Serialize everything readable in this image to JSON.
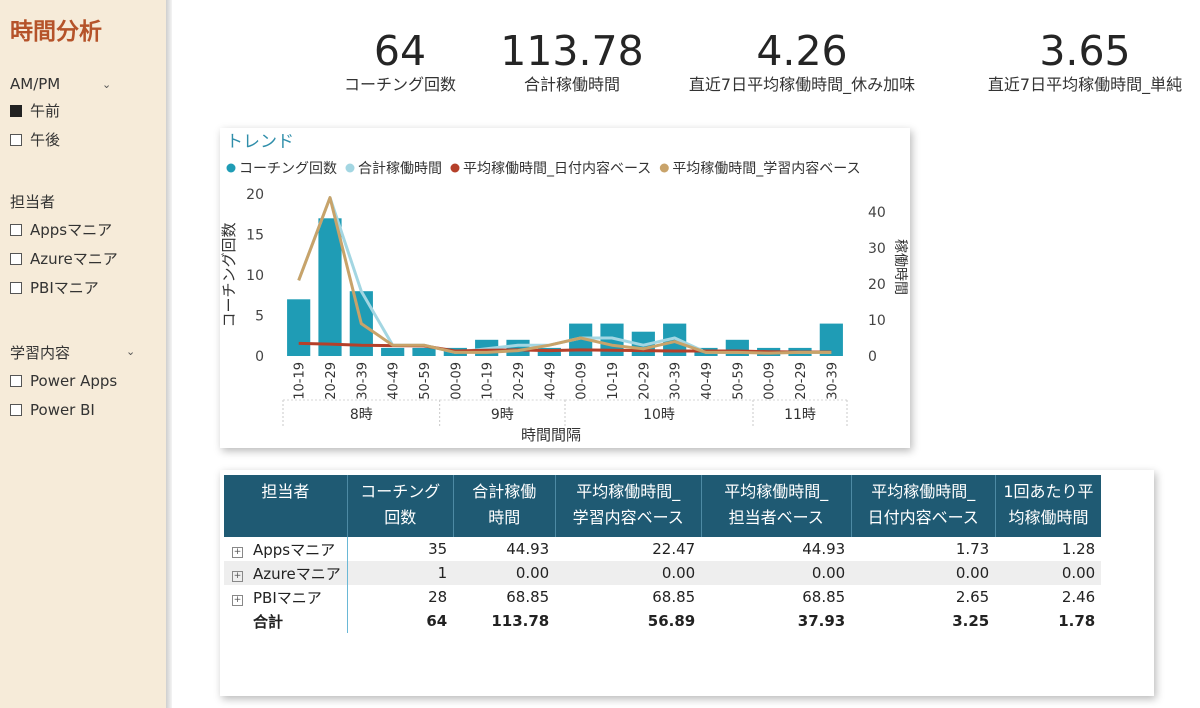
{
  "sidebar": {
    "title": "時間分析",
    "ampm": {
      "title": "AM/PM",
      "items": [
        {
          "label": "午前",
          "checked": true
        },
        {
          "label": "午後",
          "checked": false
        }
      ]
    },
    "tantou": {
      "title": "担当者",
      "items": [
        {
          "label": "Appsマニア",
          "checked": false
        },
        {
          "label": "Azureマニア",
          "checked": false
        },
        {
          "label": "PBIマニア",
          "checked": false
        }
      ]
    },
    "gakushu": {
      "title": "学習内容",
      "items": [
        {
          "label": "Power Apps",
          "checked": false
        },
        {
          "label": "Power BI",
          "checked": false
        }
      ]
    }
  },
  "cards": [
    {
      "value": "64",
      "label": "コーチング回数"
    },
    {
      "value": "113.78",
      "label": "合計稼働時間"
    },
    {
      "value": "4.26",
      "label": "直近7日平均稼働時間_休み加味"
    },
    {
      "value": "3.65",
      "label": "直近7日平均稼働時間_単純"
    }
  ],
  "chart_data": {
    "type": "bar",
    "title": "トレンド",
    "xlabel": "時間間隔",
    "ylabel": "コーチング回数",
    "y2label": "稼働時間",
    "ylim": [
      0,
      20
    ],
    "y2lim": [
      0,
      45
    ],
    "yticks": [
      0,
      5,
      10,
      15,
      20
    ],
    "y2ticks": [
      0,
      10,
      20,
      30,
      40
    ],
    "legend_position": "top-left",
    "categories": [
      "10-19",
      "20-29",
      "30-39",
      "40-49",
      "50-59",
      "00-09",
      "10-19",
      "20-29",
      "40-49",
      "00-09",
      "10-19",
      "20-29",
      "30-39",
      "40-49",
      "50-59",
      "00-09",
      "20-29",
      "30-39"
    ],
    "groups": [
      {
        "label": "8時",
        "count": 5
      },
      {
        "label": "9時",
        "count": 4
      },
      {
        "label": "10時",
        "count": 6
      },
      {
        "label": "11時",
        "count": 3
      }
    ],
    "series": [
      {
        "name": "コーチング回数",
        "type": "bar",
        "axis": "left",
        "color": "#1f9cb5",
        "values": [
          7,
          17,
          8,
          1,
          1,
          1,
          2,
          2,
          1,
          4,
          4,
          3,
          4,
          1,
          2,
          1,
          1,
          4
        ]
      },
      {
        "name": "合計稼働時間",
        "type": "line",
        "axis": "right",
        "color": "#a3d6e2",
        "values": [
          21,
          44,
          18,
          3,
          3,
          1,
          2,
          3,
          3,
          5,
          5,
          3,
          5,
          1,
          1,
          1,
          1,
          1
        ]
      },
      {
        "name": "平均稼働時間_日付内容ベース",
        "type": "line",
        "axis": "right",
        "color": "#b5402a",
        "values": [
          3.5,
          3.3,
          3.0,
          2.9,
          2.8,
          1.4,
          1.6,
          1.7,
          1.5,
          1.7,
          1.6,
          1.5,
          1.4,
          1.4,
          1.4,
          1.2,
          1.1,
          1.1
        ]
      },
      {
        "name": "平均稼働時間_学習内容ベース",
        "type": "line",
        "axis": "right",
        "color": "#c8a36a",
        "values": [
          21,
          44,
          9,
          3,
          3,
          1,
          1,
          1.5,
          3,
          5,
          3,
          2,
          4,
          1,
          1,
          0.8,
          1,
          1
        ]
      }
    ]
  },
  "table": {
    "headers": [
      "担当者",
      "コーチング\n回数",
      "合計稼働\n時間",
      "平均稼働時間_\n学習内容ベース",
      "平均稼働時間_\n担当者ベース",
      "平均稼働時間_\n日付内容ベース",
      "1回あたり平\n均稼働時間"
    ],
    "rows": [
      {
        "name": "Appsマニア",
        "cells": [
          "35",
          "44.93",
          "22.47",
          "44.93",
          "1.73",
          "1.28"
        ]
      },
      {
        "name": "Azureマニア",
        "cells": [
          "1",
          "0.00",
          "0.00",
          "0.00",
          "0.00",
          "0.00"
        ]
      },
      {
        "name": "PBIマニア",
        "cells": [
          "28",
          "68.85",
          "68.85",
          "68.85",
          "2.65",
          "2.46"
        ]
      }
    ],
    "total": {
      "name": "合計",
      "cells": [
        "64",
        "113.78",
        "56.89",
        "37.93",
        "3.25",
        "1.78"
      ]
    }
  }
}
